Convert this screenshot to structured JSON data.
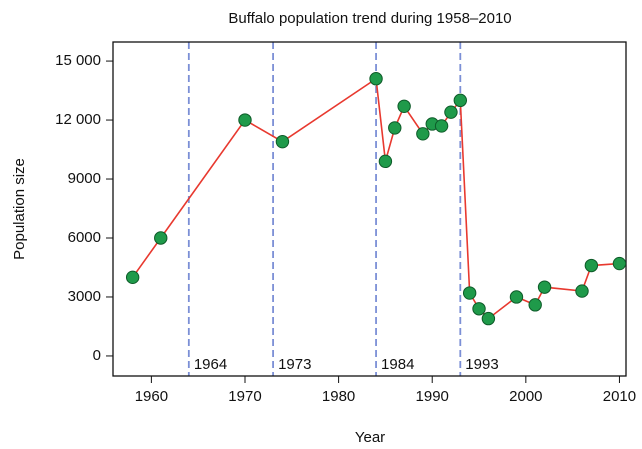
{
  "chart_data": {
    "type": "line",
    "title": "Buffalo population trend during 1958–2010",
    "x_label": "Year",
    "y_label": "Population size",
    "x": [
      1958,
      1961,
      1970,
      1974,
      1984,
      1985,
      1986,
      1987,
      1989,
      1990,
      1991,
      1992,
      1993,
      1994,
      1995,
      1996,
      1999,
      2001,
      2002,
      2006,
      2007,
      2010
    ],
    "values": [
      4000,
      6000,
      12000,
      10900,
      14100,
      9900,
      11600,
      12700,
      11300,
      11800,
      11700,
      12400,
      13000,
      3200,
      2400,
      1900,
      3000,
      2600,
      3500,
      3300,
      4600,
      4700
    ],
    "line_color": "#e8392f",
    "marker_color": "#1f9a4a",
    "vlines": [
      1964,
      1973,
      1984,
      1993
    ],
    "vline_color": "#7b8fd6",
    "xlim": [
      1955.9,
      2010.7
    ],
    "ylim": [
      -1020,
      15970
    ],
    "xticks": [
      1960,
      1970,
      1980,
      1990,
      2000,
      2010
    ],
    "yticks": [
      0,
      3000,
      6000,
      9000,
      {
        "value": 12000,
        "label": "12 000"
      },
      {
        "value": 15000,
        "label": "15 000"
      }
    ]
  }
}
